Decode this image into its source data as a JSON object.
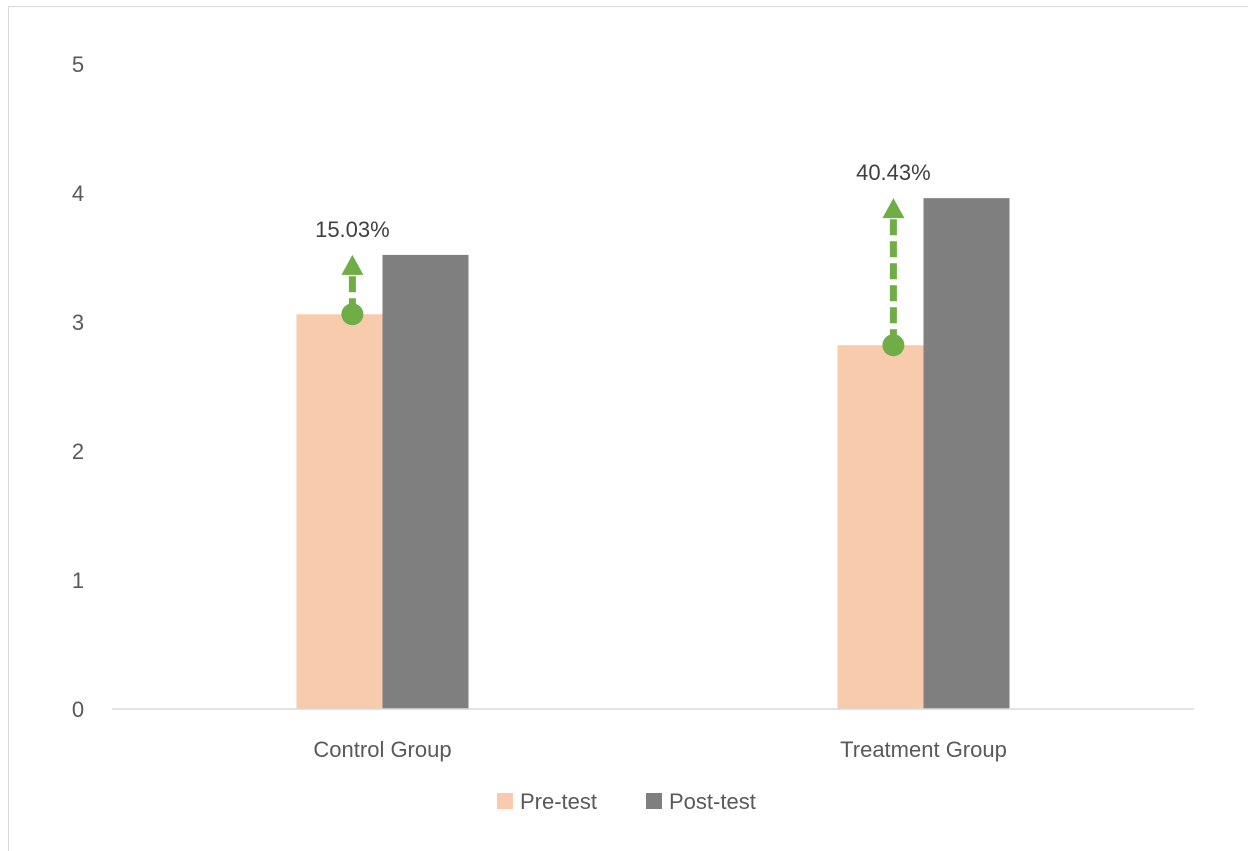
{
  "chart_data": {
    "type": "bar",
    "title": "",
    "xlabel": "",
    "ylabel": "",
    "ylim": [
      0,
      5
    ],
    "yticks": [
      "0",
      "1",
      "2",
      "3",
      "4",
      "5"
    ],
    "categories": [
      "Control Group",
      "Treatment Group"
    ],
    "series": [
      {
        "name": "Pre-test",
        "color": "#f8cbad",
        "values": [
          3.06,
          2.82
        ]
      },
      {
        "name": "Post-test",
        "color": "#7f7f7f",
        "values": [
          3.52,
          3.96
        ]
      }
    ],
    "annotations": [
      {
        "label": "15.03%",
        "category": "Control Group",
        "from": 3.06,
        "to": 3.52,
        "color": "#70ad47"
      },
      {
        "label": "40.43%",
        "category": "Treatment Group",
        "from": 2.82,
        "to": 3.96,
        "color": "#70ad47"
      }
    ],
    "grid": false,
    "legend": "bottom"
  }
}
